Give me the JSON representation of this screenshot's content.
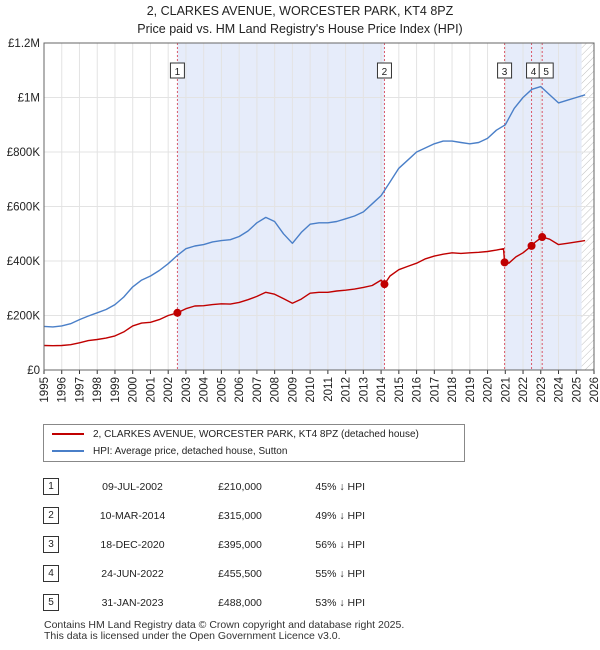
{
  "chart_data": {
    "type": "line",
    "title": "2, CLARKES AVENUE, WORCESTER PARK, KT4 8PZ",
    "subtitle": "Price paid vs. HM Land Registry's House Price Index (HPI)",
    "y_ticks": [
      "£0",
      "£200K",
      "£400K",
      "£600K",
      "£800K",
      "£1M",
      "£1.2M"
    ],
    "y_tick_values": [
      0,
      200000,
      400000,
      600000,
      800000,
      1000000,
      1200000
    ],
    "ylim": [
      0,
      1200000
    ],
    "xlim": [
      1995,
      2026
    ],
    "x_ticks": [
      "1995",
      "1996",
      "1997",
      "1998",
      "1999",
      "2000",
      "2001",
      "2002",
      "2003",
      "2004",
      "2005",
      "2006",
      "2007",
      "2008",
      "2009",
      "2010",
      "2011",
      "2012",
      "2013",
      "2014",
      "2015",
      "2016",
      "2017",
      "2018",
      "2019",
      "2020",
      "2021",
      "2022",
      "2023",
      "2024",
      "2025",
      "2026"
    ],
    "shaded_ranges": [
      [
        2002.52,
        2014.19
      ],
      [
        2020.96,
        2025.3
      ]
    ],
    "hatched_from": 2025.3,
    "colors": {
      "property": "#c00000",
      "hpi": "#4a7fc8",
      "sale_line": "#d95a6a",
      "shade": "#e6ecfa"
    },
    "series": [
      {
        "name": "2, CLARKES AVENUE, WORCESTER PARK, KT4 8PZ (detached house)",
        "x": [
          1995,
          1995.5,
          1996,
          1996.5,
          1997,
          1997.5,
          1998,
          1998.5,
          1999,
          1999.5,
          2000,
          2000.5,
          2001,
          2001.5,
          2002,
          2002.52,
          2003,
          2003.5,
          2004,
          2004.5,
          2005,
          2005.5,
          2006,
          2006.5,
          2007,
          2007.5,
          2008,
          2008.5,
          2009,
          2009.5,
          2010,
          2010.5,
          2011,
          2011.5,
          2012,
          2012.5,
          2013,
          2013.5,
          2014,
          2014.19,
          2014.5,
          2015,
          2015.5,
          2016,
          2016.5,
          2017,
          2017.5,
          2018,
          2018.5,
          2019,
          2019.5,
          2020,
          2020.5,
          2020.9,
          2020.96,
          2021.2,
          2021.6,
          2022,
          2022.48,
          2022.7,
          2023.08,
          2023.5,
          2024,
          2024.5,
          2025,
          2025.5
        ],
        "values": [
          90000,
          89000,
          90000,
          93000,
          100000,
          108000,
          112000,
          117000,
          125000,
          140000,
          162000,
          172000,
          175000,
          185000,
          200000,
          210000,
          225000,
          235000,
          236000,
          240000,
          243000,
          242000,
          248000,
          258000,
          270000,
          285000,
          278000,
          262000,
          245000,
          260000,
          282000,
          285000,
          285000,
          290000,
          293000,
          297000,
          303000,
          310000,
          330000,
          315000,
          345000,
          368000,
          380000,
          392000,
          408000,
          418000,
          425000,
          430000,
          428000,
          430000,
          432000,
          435000,
          440000,
          445000,
          395000,
          392000,
          415000,
          430000,
          455500,
          470000,
          488000,
          480000,
          460000,
          465000,
          470000,
          475000
        ]
      },
      {
        "name": "HPI: Average price, detached house, Sutton",
        "x": [
          1995,
          1995.5,
          1996,
          1996.5,
          1997,
          1997.5,
          1998,
          1998.5,
          1999,
          1999.5,
          2000,
          2000.5,
          2001,
          2001.5,
          2002,
          2002.5,
          2003,
          2003.5,
          2004,
          2004.5,
          2005,
          2005.5,
          2006,
          2006.5,
          2007,
          2007.5,
          2008,
          2008.5,
          2009,
          2009.5,
          2010,
          2010.5,
          2011,
          2011.5,
          2012,
          2012.5,
          2013,
          2013.5,
          2014,
          2014.5,
          2015,
          2015.5,
          2016,
          2016.5,
          2017,
          2017.5,
          2018,
          2018.5,
          2019,
          2019.5,
          2020,
          2020.5,
          2021,
          2021.5,
          2022,
          2022.5,
          2023,
          2023.5,
          2024,
          2024.5,
          2025,
          2025.5
        ],
        "values": [
          160000,
          158000,
          162000,
          170000,
          185000,
          198000,
          210000,
          222000,
          240000,
          268000,
          305000,
          330000,
          345000,
          365000,
          390000,
          420000,
          445000,
          455000,
          460000,
          470000,
          475000,
          478000,
          490000,
          510000,
          540000,
          560000,
          545000,
          500000,
          465000,
          505000,
          535000,
          540000,
          540000,
          545000,
          555000,
          565000,
          580000,
          610000,
          640000,
          690000,
          740000,
          770000,
          800000,
          815000,
          830000,
          840000,
          840000,
          835000,
          830000,
          835000,
          850000,
          880000,
          900000,
          960000,
          1000000,
          1030000,
          1040000,
          1010000,
          980000,
          990000,
          1000000,
          1010000
        ]
      }
    ],
    "sales": [
      {
        "id": "1",
        "x": 2002.52,
        "value": 210000
      },
      {
        "id": "2",
        "x": 2014.19,
        "value": 315000
      },
      {
        "id": "3",
        "x": 2020.96,
        "value": 395000
      },
      {
        "id": "4",
        "x": 2022.48,
        "value": 455500
      },
      {
        "id": "5",
        "x": 2023.08,
        "value": 488000
      }
    ]
  },
  "legend": {
    "property": "2, CLARKES AVENUE, WORCESTER PARK, KT4 8PZ (detached house)",
    "hpi": "HPI: Average price, detached house, Sutton"
  },
  "table": [
    {
      "num": "1",
      "date": "09-JUL-2002",
      "price": "£210,000",
      "hpi": "45% ↓ HPI"
    },
    {
      "num": "2",
      "date": "10-MAR-2014",
      "price": "£315,000",
      "hpi": "49% ↓ HPI"
    },
    {
      "num": "3",
      "date": "18-DEC-2020",
      "price": "£395,000",
      "hpi": "56% ↓ HPI"
    },
    {
      "num": "4",
      "date": "24-JUN-2022",
      "price": "£455,500",
      "hpi": "55% ↓ HPI"
    },
    {
      "num": "5",
      "date": "31-JAN-2023",
      "price": "£488,000",
      "hpi": "53% ↓ HPI"
    }
  ],
  "footer": {
    "line1": "Contains HM Land Registry data © Crown copyright and database right 2025.",
    "line2": "This data is licensed under the Open Government Licence v3.0."
  }
}
